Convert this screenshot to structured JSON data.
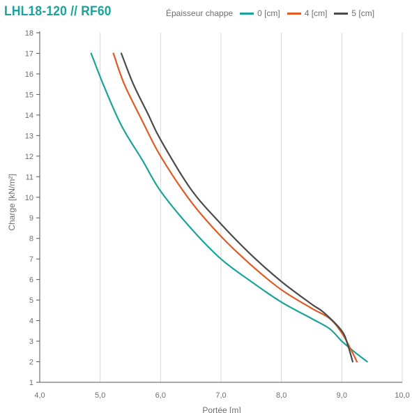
{
  "header": {
    "title": "LHL18-120 // RF60",
    "legend_title": "Épaisseur chappe"
  },
  "chart_data": {
    "type": "line",
    "title": "LHL18-120 // RF60",
    "xlabel": "Portée [m]",
    "ylabel": "Charge [kN/m²]",
    "xlim": [
      4.0,
      10.0
    ],
    "ylim": [
      1,
      18
    ],
    "x_ticks": [
      "4,0",
      "5,0",
      "6,0",
      "7,0",
      "8,0",
      "9,0",
      "10,0"
    ],
    "y_ticks": [
      "1",
      "2",
      "3",
      "4",
      "5",
      "6",
      "7",
      "8",
      "9",
      "10",
      "11",
      "12",
      "13",
      "14",
      "15",
      "16",
      "17",
      "18"
    ],
    "grid": "vertical",
    "legend_title": "Épaisseur chappe",
    "legend_position": "top",
    "series": [
      {
        "name": "0 [cm]",
        "color": "#1aa39a",
        "points": [
          [
            4.85,
            17
          ],
          [
            5.05,
            15.5
          ],
          [
            5.35,
            13.5
          ],
          [
            5.7,
            11.8
          ],
          [
            6.0,
            10.3
          ],
          [
            6.5,
            8.5
          ],
          [
            7.0,
            7.0
          ],
          [
            7.5,
            5.9
          ],
          [
            8.0,
            4.9
          ],
          [
            8.5,
            4.1
          ],
          [
            8.8,
            3.6
          ],
          [
            9.0,
            3.0
          ],
          [
            9.2,
            2.5
          ],
          [
            9.42,
            2.0
          ]
        ]
      },
      {
        "name": "4 [cm]",
        "color": "#e05a24",
        "points": [
          [
            5.22,
            17
          ],
          [
            5.4,
            15.5
          ],
          [
            5.7,
            13.7
          ],
          [
            6.0,
            12.0
          ],
          [
            6.5,
            9.8
          ],
          [
            7.0,
            8.1
          ],
          [
            7.5,
            6.7
          ],
          [
            8.0,
            5.5
          ],
          [
            8.5,
            4.6
          ],
          [
            8.8,
            4.1
          ],
          [
            9.0,
            3.4
          ],
          [
            9.15,
            2.6
          ],
          [
            9.25,
            2.0
          ]
        ]
      },
      {
        "name": "5 [cm]",
        "color": "#4a4a4a",
        "points": [
          [
            5.35,
            17
          ],
          [
            5.55,
            15.5
          ],
          [
            5.8,
            14.0
          ],
          [
            6.0,
            12.8
          ],
          [
            6.5,
            10.4
          ],
          [
            7.0,
            8.7
          ],
          [
            7.5,
            7.2
          ],
          [
            8.0,
            5.9
          ],
          [
            8.5,
            4.8
          ],
          [
            8.7,
            4.4
          ],
          [
            9.0,
            3.5
          ],
          [
            9.1,
            2.8
          ],
          [
            9.18,
            2.0
          ]
        ]
      }
    ]
  }
}
